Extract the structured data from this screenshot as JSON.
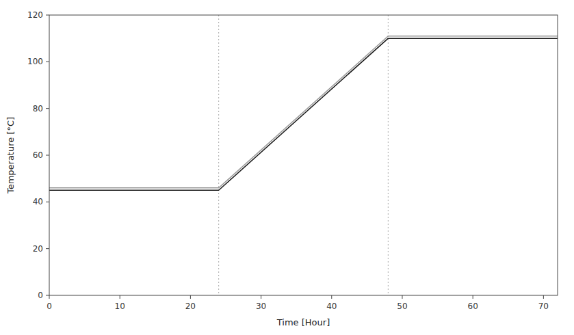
{
  "chart_data": {
    "type": "line",
    "x": [
      0,
      24,
      48,
      72
    ],
    "series": [
      {
        "color": "#999999",
        "values": [
          46,
          46,
          111,
          111
        ]
      },
      {
        "color": "#1a1a1a",
        "values": [
          45,
          45,
          110,
          110
        ]
      }
    ],
    "vlines": [
      24,
      48
    ],
    "xlabel": "Time [Hour]",
    "ylabel": "Temperature [°C]",
    "xlim": [
      0,
      72
    ],
    "ylim": [
      0,
      120
    ],
    "xticks": [
      0,
      10,
      20,
      30,
      40,
      50,
      60,
      70
    ],
    "yticks": [
      0,
      20,
      40,
      60,
      80,
      100,
      120
    ],
    "grid": false
  }
}
